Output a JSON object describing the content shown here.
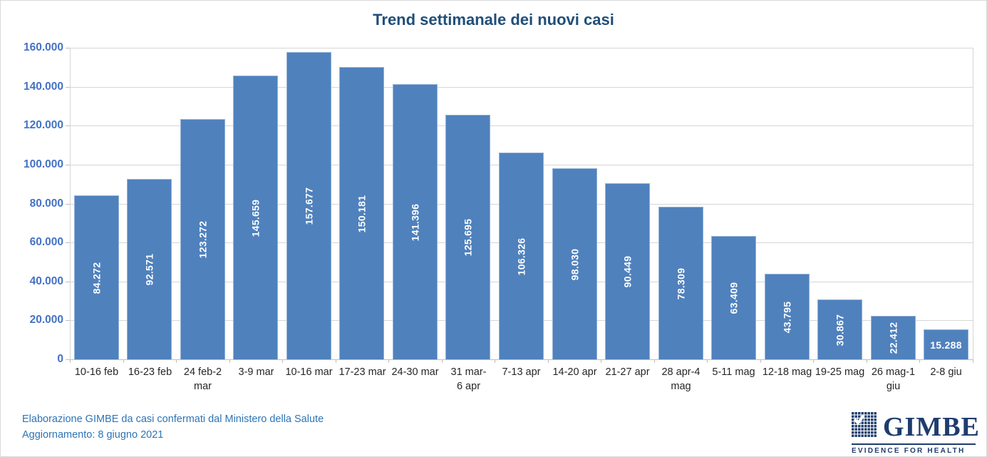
{
  "title": "Trend settimanale dei nuovi casi",
  "footer": {
    "line1": "Elaborazione GIMBE da casi confermati dal Ministero della Salute",
    "line2": "Aggiornamento: 8 giugno 2021"
  },
  "logo": {
    "name": "GIMBE",
    "tagline": "EVIDENCE FOR HEALTH",
    "icon": "grid-check-icon"
  },
  "colors": {
    "bar": "#4F81BD",
    "title": "#1F4E79",
    "y_tick_labels": "#4472C4",
    "x_tick_labels": "#262626",
    "footer": "#2E74B5",
    "logo": "#1E3C6E",
    "gridline": "#D6D6D6",
    "data_label": "#FFFFFF"
  },
  "chart_data": {
    "type": "bar",
    "title": "Trend settimanale dei nuovi casi",
    "categories": [
      "10-16 feb",
      "16-23 feb",
      "24 feb-2 mar",
      "3-9 mar",
      "10-16 mar",
      "17-23 mar",
      "24-30 mar",
      "31 mar-6 apr",
      "7-13 apr",
      "14-20 apr",
      "21-27 apr",
      "28 apr-4 mag",
      "5-11 mag",
      "12-18 mag",
      "19-25 mag",
      "26 mag-1 giu",
      "2-8 giu"
    ],
    "category_lines": [
      [
        "10-16 feb"
      ],
      [
        "16-23 feb"
      ],
      [
        "24 feb-2",
        "mar"
      ],
      [
        "3-9 mar"
      ],
      [
        "10-16 mar"
      ],
      [
        "17-23 mar"
      ],
      [
        "24-30 mar"
      ],
      [
        "31 mar-",
        "6 apr"
      ],
      [
        "7-13 apr"
      ],
      [
        "14-20 apr"
      ],
      [
        "21-27 apr"
      ],
      [
        "28 apr-4",
        "mag"
      ],
      [
        "5-11 mag"
      ],
      [
        "12-18 mag"
      ],
      [
        "19-25 mag"
      ],
      [
        "26 mag-1",
        "giu"
      ],
      [
        "2-8 giu"
      ]
    ],
    "values": [
      84272,
      92571,
      123272,
      145659,
      157677,
      150181,
      141396,
      125695,
      106326,
      98030,
      90449,
      78309,
      63409,
      43795,
      30867,
      22412,
      15288
    ],
    "data_labels": [
      "84.272",
      "92.571",
      "123.272",
      "145.659",
      "157.677",
      "150.181",
      "141.396",
      "125.695",
      "106.326",
      "98.030",
      "90.449",
      "78.309",
      "63.409",
      "43.795",
      "30.867",
      "22.412",
      "15.288"
    ],
    "xlabel": "",
    "ylabel": "",
    "ylim": [
      0,
      160000
    ],
    "y_tick_step": 20000,
    "y_tick_labels": [
      "0",
      "20.000",
      "40.000",
      "60.000",
      "80.000",
      "100.000",
      "120.000",
      "140.000",
      "160.000"
    ],
    "grid": "horizontal",
    "legend": "none",
    "data_label_position": "center",
    "data_label_rotation": "vertical except last bar"
  }
}
